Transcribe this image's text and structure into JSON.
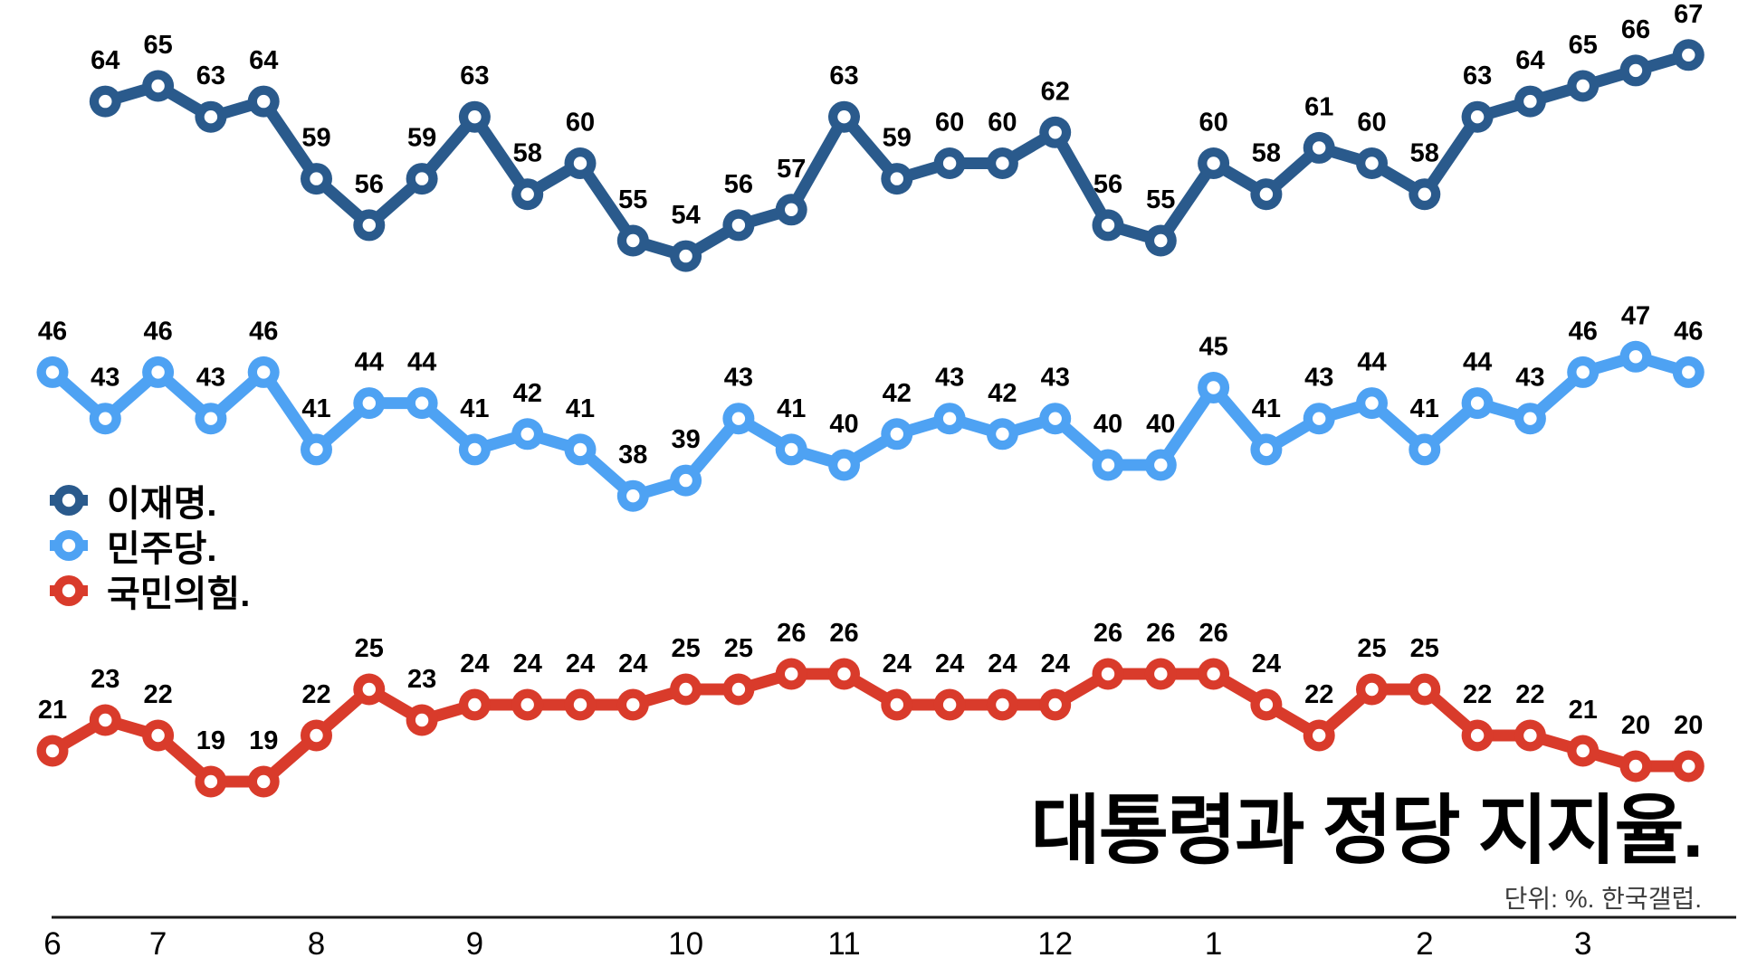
{
  "title": "대통령과 정당 지지율.",
  "subtitle": "단위: %. 한국갤럽.",
  "legend": {
    "items": [
      {
        "label": "이재명.",
        "color": "#2A5A8C"
      },
      {
        "label": "민주당.",
        "color": "#4EA2F3"
      },
      {
        "label": "국민의힘.",
        "color": "#D93B2B"
      }
    ]
  },
  "chart_data": {
    "type": "line",
    "unit": "%",
    "grid": "off",
    "legend_position": "middle-left",
    "slots": 32,
    "x_tick_labels": [
      {
        "label": "6",
        "slot": 0
      },
      {
        "label": "7",
        "slot": 2
      },
      {
        "label": "8",
        "slot": 5
      },
      {
        "label": "9",
        "slot": 8
      },
      {
        "label": "10",
        "slot": 12
      },
      {
        "label": "11",
        "slot": 15
      },
      {
        "label": "12",
        "slot": 19
      },
      {
        "label": "1",
        "slot": 22
      },
      {
        "label": "2",
        "slot": 26
      },
      {
        "label": "3",
        "slot": 29
      }
    ],
    "series": [
      {
        "name": "이재명",
        "color": "#2A5A8C",
        "start_slot": 1,
        "values": [
          64,
          65,
          63,
          64,
          59,
          56,
          59,
          63,
          58,
          60,
          55,
          54,
          56,
          57,
          63,
          59,
          60,
          60,
          62,
          56,
          55,
          60,
          58,
          61,
          60,
          58,
          63,
          64,
          65,
          66,
          67
        ]
      },
      {
        "name": "민주당",
        "color": "#4EA2F3",
        "start_slot": 0,
        "values": [
          46,
          43,
          46,
          43,
          46,
          41,
          44,
          44,
          41,
          42,
          41,
          38,
          39,
          43,
          41,
          40,
          42,
          43,
          42,
          43,
          40,
          40,
          45,
          41,
          43,
          44,
          41,
          44,
          43,
          46,
          47,
          46
        ]
      },
      {
        "name": "국민의힘",
        "color": "#D93B2B",
        "start_slot": 0,
        "values": [
          21,
          23,
          22,
          19,
          19,
          22,
          25,
          23,
          24,
          24,
          24,
          24,
          25,
          25,
          26,
          26,
          24,
          24,
          24,
          24,
          26,
          26,
          26,
          24,
          22,
          25,
          25,
          22,
          22,
          21,
          20,
          20
        ]
      }
    ]
  }
}
